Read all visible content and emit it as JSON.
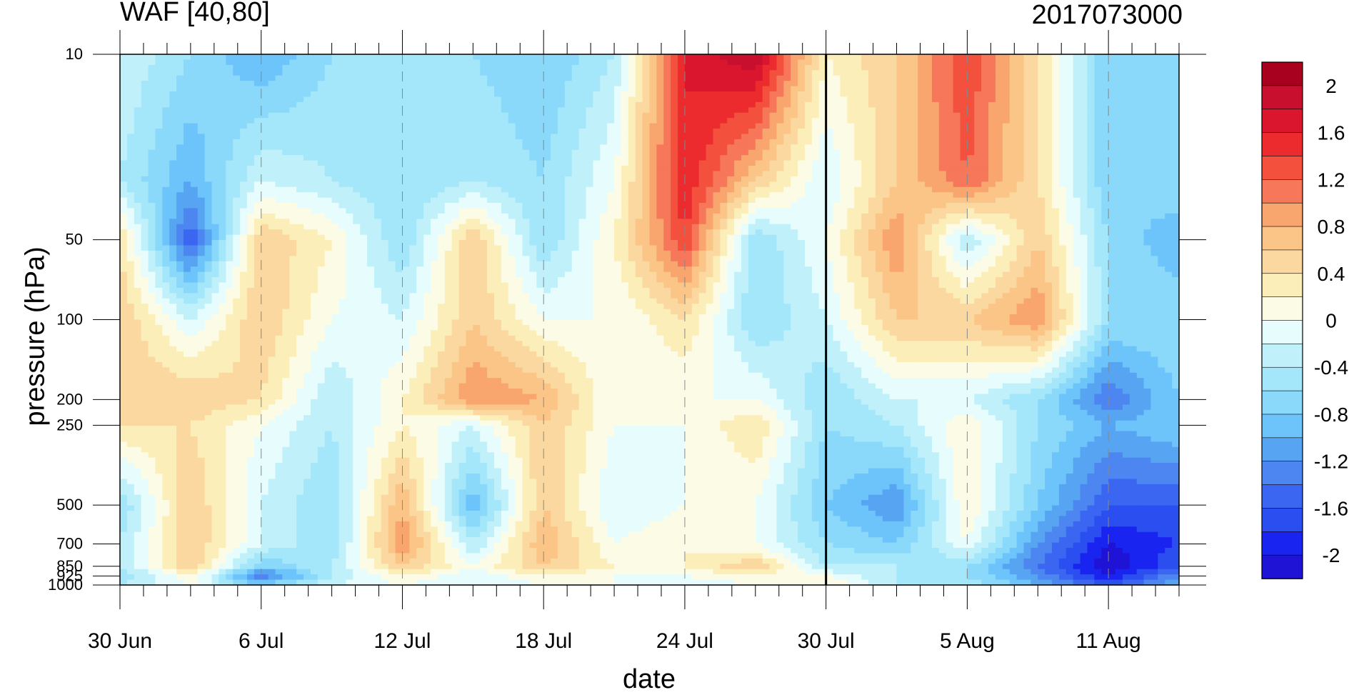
{
  "chart_data": {
    "type": "heatmap",
    "subtype": "filled-contour",
    "title_left": "WAF [40,80]",
    "title_right": "2017073000",
    "xlabel": "date",
    "ylabel": "pressure (hPa)",
    "x_tick_labels": [
      "30 Jun",
      "6 Jul",
      "12 Jul",
      "18 Jul",
      "24 Jul",
      "30 Jul",
      "5 Aug",
      "11 Aug"
    ],
    "x_tick_days": [
      0,
      6,
      12,
      18,
      24,
      30,
      36,
      42
    ],
    "x_range_days": [
      0,
      45
    ],
    "x_minor_step_days": 1,
    "current_time_marker_day": 30,
    "y_scale": "log",
    "y_reversed": true,
    "y_tick_labels": [
      "10",
      "50",
      "100",
      "200",
      "250",
      "500",
      "700",
      "850",
      "925",
      "1000"
    ],
    "y_tick_values": [
      10,
      50,
      100,
      200,
      250,
      500,
      700,
      850,
      925,
      1000
    ],
    "ylim": [
      10,
      1000
    ],
    "colorbar": {
      "levels": [
        -2.2,
        -2,
        -1.8,
        -1.6,
        -1.4,
        -1.2,
        -1,
        -0.8,
        -0.6,
        -0.4,
        -0.2,
        0,
        0.2,
        0.4,
        0.6,
        0.8,
        1,
        1.2,
        1.4,
        1.6,
        1.8,
        2,
        2.2
      ],
      "colors": [
        "#1f13d6",
        "#1a24f0",
        "#2b4ef0",
        "#3a66f2",
        "#4d86f1",
        "#56a4f2",
        "#6cc4fa",
        "#8ad9fa",
        "#a4e6fa",
        "#c0f1fa",
        "#e6fcfd",
        "#fcfce6",
        "#fceeb8",
        "#fbd8a0",
        "#fbc588",
        "#f9a56e",
        "#f7775a",
        "#f4503e",
        "#ec2b2e",
        "#d9162e",
        "#c8102e",
        "#a8001f"
      ],
      "tick_labels": [
        "2",
        "1.6",
        "1.2",
        "0.8",
        "0.4",
        "0",
        "-0.4",
        "-0.8",
        "-1.2",
        "-1.6",
        "-2"
      ],
      "tick_values": [
        2,
        1.6,
        1.2,
        0.8,
        0.4,
        0,
        -0.4,
        -0.8,
        -1.2,
        -1.6,
        -2
      ]
    },
    "grid_x_days": [
      0,
      3,
      6,
      9,
      12,
      15,
      18,
      21,
      24,
      27,
      30,
      33,
      36,
      39,
      42,
      45
    ],
    "grid_y_hpa": [
      10,
      30,
      50,
      100,
      200,
      250,
      500,
      700,
      850,
      925,
      1000
    ],
    "values": [
      [
        -0.2,
        -0.6,
        -1.0,
        -0.6,
        -0.6,
        -0.6,
        -0.8,
        -0.4,
        1.6,
        2.0,
        0.2,
        0.6,
        1.4,
        0.4,
        -0.8,
        -0.8
      ],
      [
        -0.4,
        -1.0,
        -0.2,
        -0.4,
        -0.6,
        -0.4,
        -0.6,
        0.0,
        1.6,
        0.6,
        -0.2,
        0.6,
        1.2,
        0.4,
        -0.8,
        -0.6
      ],
      [
        0.4,
        -1.6,
        0.6,
        0.2,
        -0.6,
        0.6,
        -0.6,
        0.2,
        1.4,
        -0.6,
        0.0,
        1.0,
        -0.4,
        0.6,
        -0.6,
        -1.0
      ],
      [
        0.6,
        -0.2,
        0.6,
        0.0,
        -0.2,
        0.6,
        0.0,
        0.0,
        0.4,
        -0.6,
        -0.2,
        0.6,
        0.6,
        1.0,
        -0.6,
        -0.6
      ],
      [
        0.6,
        0.6,
        0.4,
        -0.4,
        0.2,
        1.0,
        0.8,
        0.0,
        0.0,
        0.0,
        -0.6,
        -0.2,
        -0.2,
        -0.6,
        -1.4,
        -0.8
      ],
      [
        0.4,
        0.4,
        0.0,
        -0.4,
        0.2,
        -0.2,
        0.6,
        0.0,
        0.0,
        0.4,
        -0.6,
        -0.4,
        0.2,
        -0.6,
        -1.0,
        -0.8
      ],
      [
        -0.6,
        0.6,
        -0.2,
        -0.6,
        0.8,
        -1.0,
        0.6,
        -0.2,
        0.0,
        0.0,
        -0.8,
        -1.2,
        0.2,
        -0.8,
        -1.6,
        -1.6
      ],
      [
        -0.4,
        0.6,
        -0.2,
        -0.6,
        1.0,
        -0.4,
        0.8,
        0.0,
        0.2,
        0.0,
        -0.6,
        -0.8,
        0.0,
        -1.2,
        -2.0,
        -1.8
      ],
      [
        -0.4,
        0.6,
        -0.8,
        -0.4,
        0.6,
        0.0,
        0.6,
        0.2,
        0.2,
        0.6,
        -0.4,
        -0.4,
        -0.6,
        -1.4,
        -2.2,
        -1.6
      ],
      [
        -0.6,
        0.2,
        -1.4,
        -0.4,
        0.2,
        -0.2,
        0.2,
        0.0,
        0.0,
        0.2,
        0.0,
        -0.4,
        -0.6,
        -1.2,
        -2.0,
        -1.2
      ],
      [
        -0.4,
        0.0,
        -0.8,
        -0.2,
        0.0,
        -0.2,
        0.0,
        0.0,
        -0.2,
        0.0,
        0.2,
        -0.4,
        -0.4,
        -1.0,
        -1.6,
        -1.0
      ]
    ]
  }
}
